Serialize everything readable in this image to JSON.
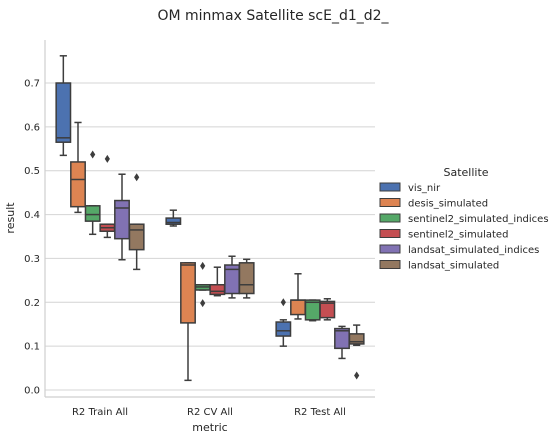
{
  "chart_data": {
    "type": "boxplot",
    "title": "OM minmax Satellite scE_d1_d2_",
    "xlabel": "metric",
    "ylabel": "result",
    "ylim": [
      -0.02,
      0.8
    ],
    "yticks": [
      "0.0",
      "0.1",
      "0.2",
      "0.3",
      "0.4",
      "0.5",
      "0.6",
      "0.7"
    ],
    "grid": "horizontal",
    "categories": [
      "R2 Train All",
      "R2 CV All",
      "R2 Test All"
    ],
    "legend": {
      "title": "Satellite",
      "placement": "right"
    },
    "series": [
      {
        "name": "vis_nir",
        "color": "#4c72b0",
        "boxes": [
          {
            "whislo": 0.535,
            "q1": 0.565,
            "med": 0.575,
            "q3": 0.7,
            "whishi": 0.762,
            "fliers": []
          },
          {
            "whislo": 0.374,
            "q1": 0.378,
            "med": 0.382,
            "q3": 0.392,
            "whishi": 0.41,
            "fliers": []
          },
          {
            "whislo": 0.1,
            "q1": 0.123,
            "med": 0.135,
            "q3": 0.155,
            "whishi": 0.16,
            "fliers": [
              0.2
            ]
          }
        ]
      },
      {
        "name": "desis_simulated",
        "color": "#dd8452",
        "boxes": [
          {
            "whislo": 0.405,
            "q1": 0.418,
            "med": 0.48,
            "q3": 0.52,
            "whishi": 0.61,
            "fliers": []
          },
          {
            "whislo": 0.022,
            "q1": 0.153,
            "med": 0.285,
            "q3": 0.29,
            "whishi": 0.29,
            "fliers": []
          },
          {
            "whislo": 0.162,
            "q1": 0.172,
            "med": 0.205,
            "q3": 0.205,
            "whishi": 0.265,
            "fliers": []
          }
        ]
      },
      {
        "name": "sentinel2_simulated_indices",
        "color": "#55a868",
        "boxes": [
          {
            "whislo": 0.355,
            "q1": 0.385,
            "med": 0.4,
            "q3": 0.42,
            "whishi": 0.42,
            "fliers": [
              0.537
            ]
          },
          {
            "whislo": 0.228,
            "q1": 0.228,
            "med": 0.235,
            "q3": 0.24,
            "whishi": 0.24,
            "fliers": [
              0.283,
              0.198
            ]
          },
          {
            "whislo": 0.158,
            "q1": 0.16,
            "med": 0.2,
            "q3": 0.205,
            "whishi": 0.205,
            "fliers": []
          }
        ]
      },
      {
        "name": "sentinel2_simulated",
        "color": "#c44e52",
        "boxes": [
          {
            "whislo": 0.348,
            "q1": 0.362,
            "med": 0.37,
            "q3": 0.378,
            "whishi": 0.378,
            "fliers": [
              0.527
            ]
          },
          {
            "whislo": 0.215,
            "q1": 0.218,
            "med": 0.225,
            "q3": 0.24,
            "whishi": 0.28,
            "fliers": []
          },
          {
            "whislo": 0.16,
            "q1": 0.165,
            "med": 0.198,
            "q3": 0.202,
            "whishi": 0.208,
            "fliers": []
          }
        ]
      },
      {
        "name": "landsat_simulated_indices",
        "color": "#8172b3",
        "boxes": [
          {
            "whislo": 0.297,
            "q1": 0.345,
            "med": 0.415,
            "q3": 0.432,
            "whishi": 0.492,
            "fliers": []
          },
          {
            "whislo": 0.21,
            "q1": 0.22,
            "med": 0.275,
            "q3": 0.285,
            "whishi": 0.305,
            "fliers": []
          },
          {
            "whislo": 0.072,
            "q1": 0.095,
            "med": 0.135,
            "q3": 0.14,
            "whishi": 0.145,
            "fliers": []
          }
        ]
      },
      {
        "name": "landsat_simulated",
        "color": "#937860",
        "boxes": [
          {
            "whislo": 0.275,
            "q1": 0.32,
            "med": 0.365,
            "q3": 0.378,
            "whishi": 0.378,
            "fliers": [
              0.485
            ]
          },
          {
            "whislo": 0.21,
            "q1": 0.22,
            "med": 0.24,
            "q3": 0.29,
            "whishi": 0.298,
            "fliers": []
          },
          {
            "whislo": 0.102,
            "q1": 0.105,
            "med": 0.11,
            "q3": 0.128,
            "whishi": 0.148,
            "fliers": [
              0.033
            ]
          }
        ]
      }
    ]
  }
}
